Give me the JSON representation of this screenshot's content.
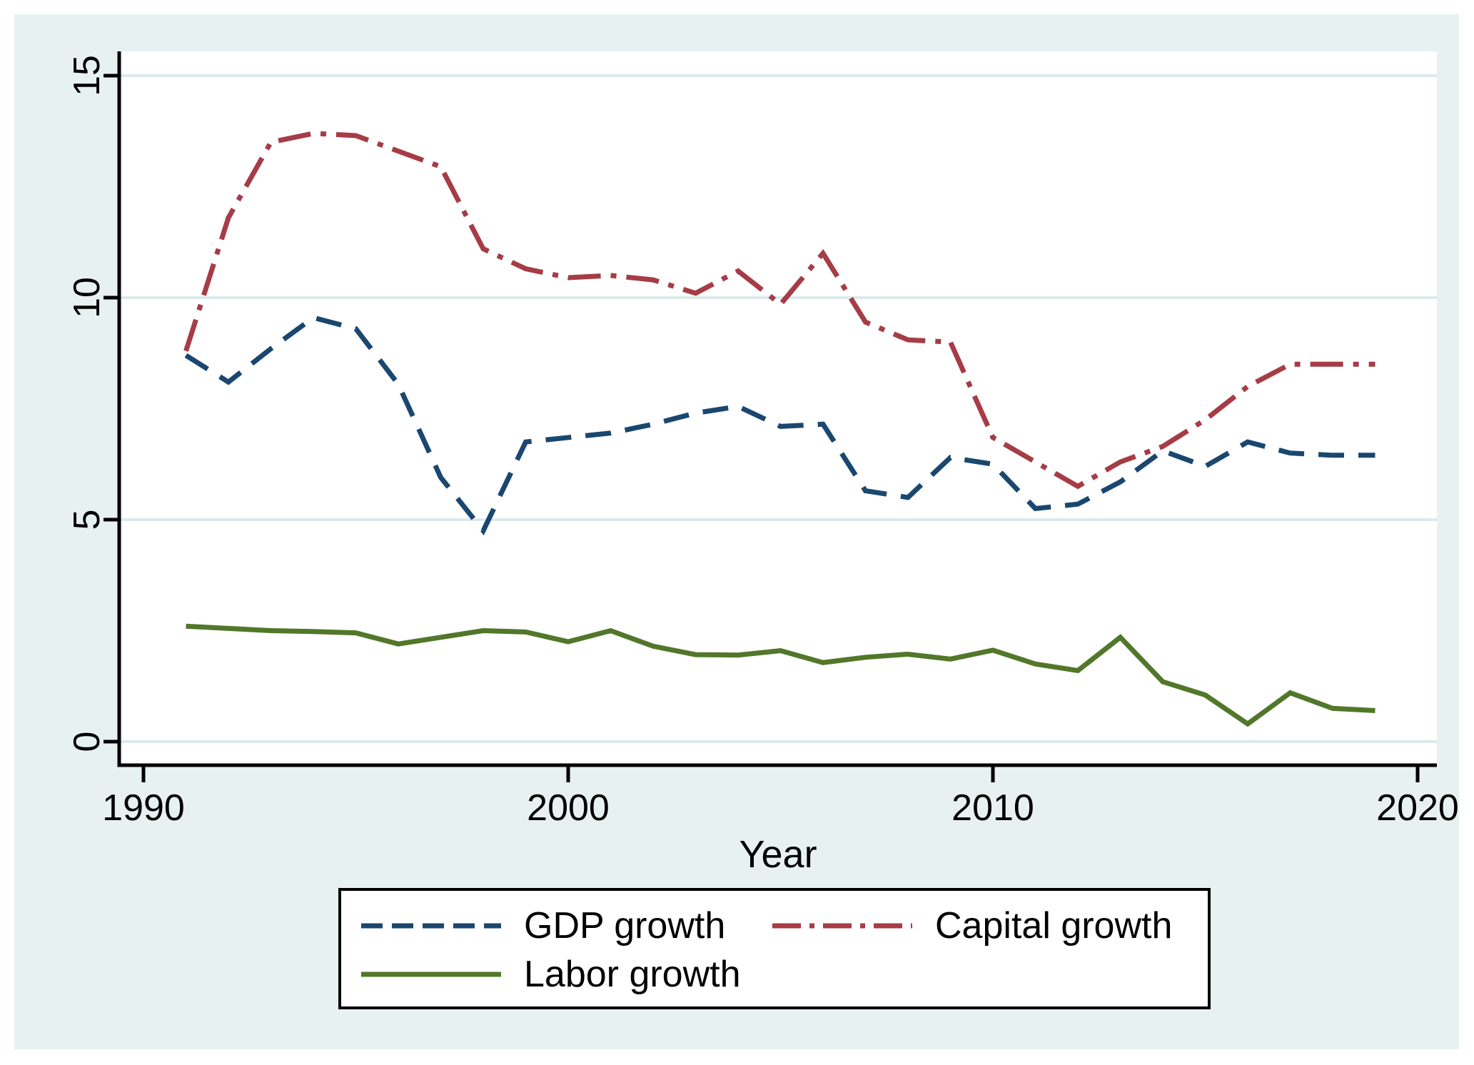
{
  "chart_data": {
    "type": "line",
    "title": "",
    "xlabel": "Year",
    "ylabel": "",
    "x_ticks": [
      1990,
      2000,
      2010,
      2020
    ],
    "y_ticks": [
      0,
      5,
      10,
      15
    ],
    "xlim": [
      1990,
      2020
    ],
    "ylim": [
      0,
      15
    ],
    "grid": "horizontal",
    "legend_position": "bottom-boxed",
    "x": [
      1991,
      1992,
      1993,
      1994,
      1995,
      1996,
      1997,
      1998,
      1999,
      2000,
      2001,
      2002,
      2003,
      2004,
      2005,
      2006,
      2007,
      2008,
      2009,
      2010,
      2011,
      2012,
      2013,
      2014,
      2015,
      2016,
      2017,
      2018,
      2019
    ],
    "series": [
      {
        "key": "gdp-growth",
        "name": "GDP growth",
        "style": "dashed",
        "color": "#1a476f",
        "values": [
          8.7,
          8.1,
          8.85,
          9.55,
          9.3,
          8.05,
          5.95,
          4.75,
          6.75,
          6.85,
          6.95,
          7.15,
          7.4,
          7.55,
          7.1,
          7.15,
          5.65,
          5.5,
          6.4,
          6.25,
          5.25,
          5.35,
          5.85,
          6.55,
          6.2,
          6.75,
          6.5,
          6.45,
          6.45
        ]
      },
      {
        "key": "capital-growth",
        "name": "Capital growth",
        "style": "dash-dot",
        "color": "#a63c46",
        "values": [
          8.8,
          11.8,
          13.5,
          13.7,
          13.65,
          13.3,
          12.95,
          11.1,
          10.65,
          10.45,
          10.5,
          10.4,
          10.1,
          10.6,
          9.85,
          11.0,
          9.45,
          9.05,
          9.0,
          6.85,
          6.3,
          5.75,
          6.3,
          6.65,
          7.25,
          8.0,
          8.5,
          8.5,
          8.5
        ]
      },
      {
        "key": "labor-growth",
        "name": "Labor growth",
        "style": "solid",
        "color": "#52772a",
        "values": [
          2.6,
          2.55,
          2.5,
          2.48,
          2.45,
          2.2,
          2.35,
          2.5,
          2.47,
          2.25,
          2.5,
          2.15,
          1.96,
          1.95,
          2.05,
          1.78,
          1.9,
          1.97,
          1.86,
          2.06,
          1.75,
          1.6,
          2.35,
          1.35,
          1.05,
          0.4,
          1.1,
          0.75,
          0.7
        ]
      }
    ],
    "colors": {
      "graph_region": "#e8f1f2",
      "plot_region": "#ffffff",
      "gridline": "#dceaec",
      "axis": "#000000",
      "legend_border": "#000000",
      "legend_fill": "#ffffff"
    }
  },
  "legend": {
    "entries": [
      {
        "key": "gdp-growth",
        "label": "GDP growth"
      },
      {
        "key": "capital-growth",
        "label": "Capital growth"
      },
      {
        "key": "labor-growth",
        "label": "Labor growth"
      }
    ]
  }
}
